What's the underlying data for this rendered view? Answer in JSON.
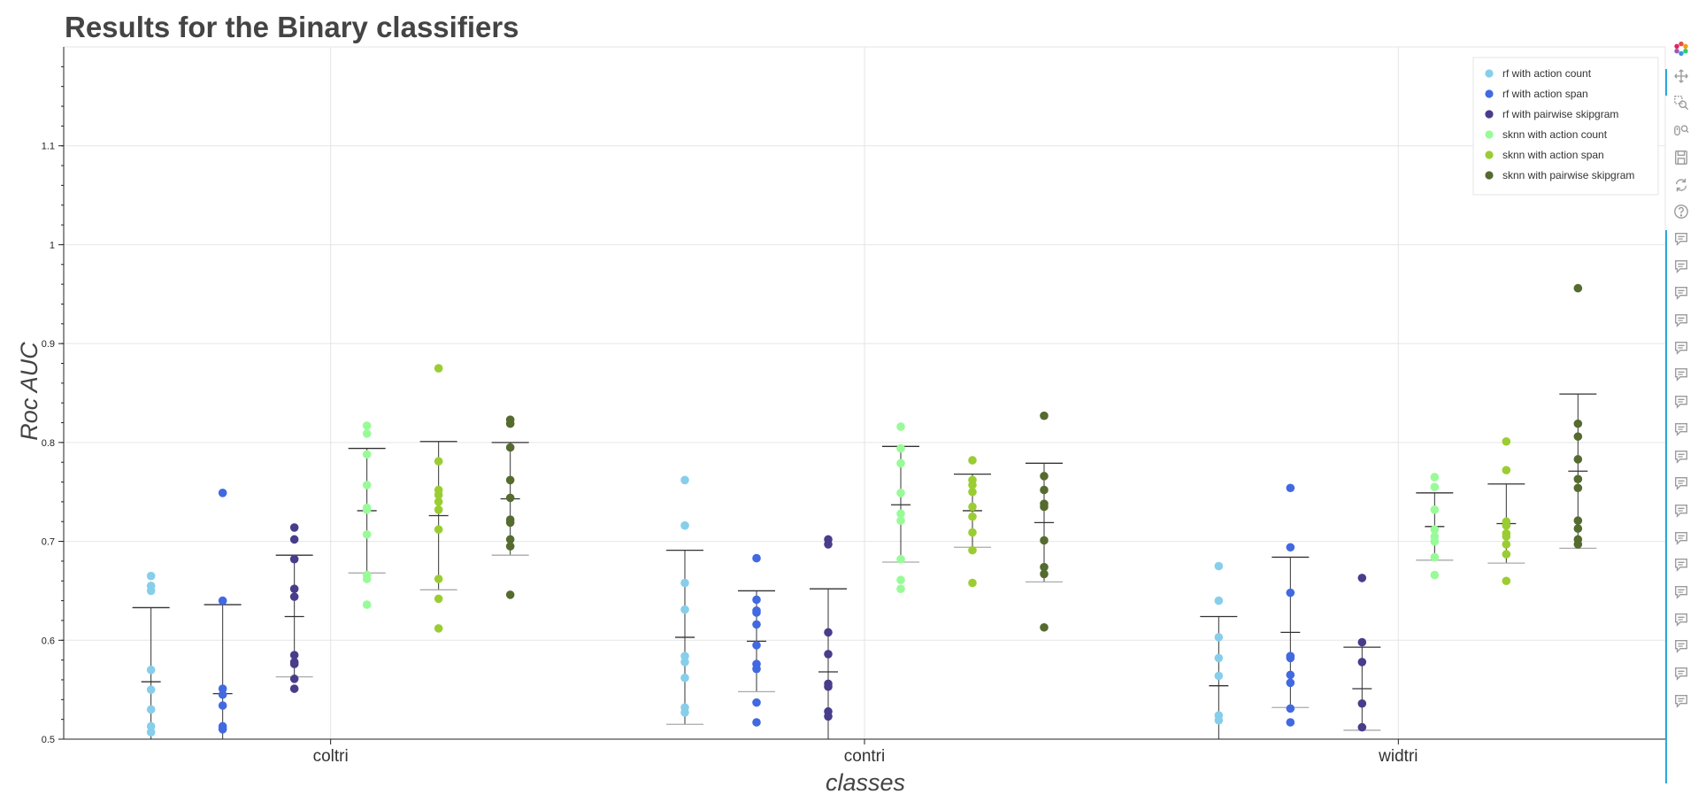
{
  "chart_data": {
    "type": "scatter",
    "title": "Results for the Binary classifiers",
    "xlabel": "classes",
    "ylabel": "Roc AUC",
    "ylim": [
      0.5,
      1.2
    ],
    "yticks": [
      0.5,
      0.6,
      0.7,
      0.8,
      0.9,
      1,
      1.1
    ],
    "categories": [
      "coltri",
      "contri",
      "widtri"
    ],
    "grid": true,
    "legend_placement": "top-right",
    "series": [
      {
        "name": "rf with action count",
        "color": "#87CEEB",
        "points": {
          "coltri": [
            0.665,
            0.655,
            0.65,
            0.57,
            0.55,
            0.53,
            0.513,
            0.507
          ],
          "contri": [
            0.762,
            0.716,
            0.658,
            0.631,
            0.584,
            0.578,
            0.562,
            0.532,
            0.527
          ],
          "widtri": [
            0.675,
            0.64,
            0.603,
            0.582,
            0.564,
            0.524,
            0.519
          ]
        },
        "error_bars": {
          "coltri": {
            "mean": 0.558,
            "upper": 0.633,
            "lower": 0.484
          },
          "contri": {
            "mean": 0.603,
            "upper": 0.691,
            "lower": 0.515
          },
          "widtri": {
            "mean": 0.554,
            "upper": 0.624,
            "lower": 0.484
          }
        }
      },
      {
        "name": "rf with action span",
        "color": "#4169E1",
        "points": {
          "coltri": [
            0.749,
            0.64,
            0.551,
            0.545,
            0.534,
            0.513,
            0.51
          ],
          "contri": [
            0.683,
            0.641,
            0.63,
            0.628,
            0.616,
            0.595,
            0.576,
            0.571,
            0.537,
            0.517
          ],
          "widtri": [
            0.754,
            0.694,
            0.648,
            0.584,
            0.582,
            0.565,
            0.557,
            0.531,
            0.517
          ]
        },
        "error_bars": {
          "coltri": {
            "mean": 0.546,
            "upper": 0.636,
            "lower": 0.456
          },
          "contri": {
            "mean": 0.599,
            "upper": 0.65,
            "lower": 0.548
          },
          "widtri": {
            "mean": 0.608,
            "upper": 0.684,
            "lower": 0.532
          }
        }
      },
      {
        "name": "rf with pairwise skipgram",
        "color": "#483D8B",
        "points": {
          "coltri": [
            0.714,
            0.702,
            0.682,
            0.652,
            0.644,
            0.585,
            0.578,
            0.576,
            0.561,
            0.551
          ],
          "contri": [
            0.702,
            0.697,
            0.608,
            0.586,
            0.556,
            0.553,
            0.528,
            0.523
          ],
          "widtri": [
            0.663,
            0.598,
            0.578,
            0.536,
            0.512
          ]
        },
        "error_bars": {
          "coltri": {
            "mean": 0.624,
            "upper": 0.686,
            "lower": 0.563
          },
          "contri": {
            "mean": 0.568,
            "upper": 0.652,
            "lower": 0.484
          },
          "widtri": {
            "mean": 0.551,
            "upper": 0.593,
            "lower": 0.509
          }
        }
      },
      {
        "name": "sknn with action count",
        "color": "#98FB98",
        "points": {
          "coltri": [
            0.817,
            0.809,
            0.788,
            0.757,
            0.734,
            0.732,
            0.707,
            0.666,
            0.662,
            0.636
          ],
          "contri": [
            0.816,
            0.794,
            0.779,
            0.749,
            0.728,
            0.721,
            0.682,
            0.661,
            0.652
          ],
          "widtri": [
            0.765,
            0.755,
            0.732,
            0.712,
            0.705,
            0.7,
            0.684,
            0.666
          ]
        },
        "error_bars": {
          "coltri": {
            "mean": 0.731,
            "upper": 0.794,
            "lower": 0.668
          },
          "contri": {
            "mean": 0.737,
            "upper": 0.796,
            "lower": 0.679
          },
          "widtri": {
            "mean": 0.715,
            "upper": 0.749,
            "lower": 0.681
          }
        }
      },
      {
        "name": "sknn with action span",
        "color": "#9ACD32",
        "points": {
          "coltri": [
            0.875,
            0.781,
            0.752,
            0.747,
            0.74,
            0.732,
            0.712,
            0.662,
            0.642,
            0.612
          ],
          "contri": [
            0.782,
            0.762,
            0.757,
            0.75,
            0.735,
            0.725,
            0.709,
            0.691,
            0.658
          ],
          "widtri": [
            0.801,
            0.772,
            0.72,
            0.716,
            0.708,
            0.705,
            0.697,
            0.687,
            0.66
          ]
        },
        "error_bars": {
          "coltri": {
            "mean": 0.726,
            "upper": 0.801,
            "lower": 0.651
          },
          "contri": {
            "mean": 0.731,
            "upper": 0.768,
            "lower": 0.694
          },
          "widtri": {
            "mean": 0.718,
            "upper": 0.758,
            "lower": 0.678
          }
        }
      },
      {
        "name": "sknn with pairwise skipgram",
        "color": "#556B2F",
        "points": {
          "coltri": [
            0.823,
            0.819,
            0.795,
            0.762,
            0.744,
            0.722,
            0.719,
            0.702,
            0.695,
            0.646
          ],
          "contri": [
            0.827,
            0.766,
            0.752,
            0.738,
            0.735,
            0.701,
            0.674,
            0.667,
            0.613
          ],
          "widtri": [
            0.956,
            0.819,
            0.806,
            0.783,
            0.763,
            0.754,
            0.721,
            0.713,
            0.702,
            0.697
          ]
        },
        "error_bars": {
          "coltri": {
            "mean": 0.743,
            "upper": 0.8,
            "lower": 0.686
          },
          "contri": {
            "mean": 0.719,
            "upper": 0.779,
            "lower": 0.659
          },
          "widtri": {
            "mean": 0.771,
            "upper": 0.849,
            "lower": 0.693
          }
        }
      }
    ]
  },
  "toolbar": {
    "tools": [
      "bokeh-logo-icon",
      "pan-icon",
      "box-zoom-icon",
      "wheel-zoom-icon",
      "save-icon",
      "reset-icon",
      "help-icon",
      "hover-icon",
      "hover-icon",
      "hover-icon",
      "hover-icon",
      "hover-icon",
      "hover-icon",
      "hover-icon",
      "hover-icon",
      "hover-icon",
      "hover-icon",
      "hover-icon",
      "hover-icon",
      "hover-icon",
      "hover-icon",
      "hover-icon",
      "hover-icon",
      "hover-icon",
      "hover-icon"
    ],
    "accent_color": "#26aae1"
  }
}
